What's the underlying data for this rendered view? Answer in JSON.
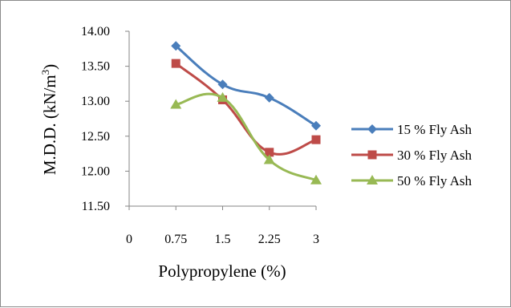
{
  "chart_data": {
    "type": "line",
    "title": "",
    "xlabel": "Polypropylene (%)",
    "ylabel_main": "M.D.D. (kN/m",
    "ylabel_sup": "3",
    "ylabel_end": ")",
    "x_tick_labels": [
      "0",
      "0.75",
      "1.5",
      "2.25",
      "3"
    ],
    "y_tick_labels": [
      "11.50",
      "12.00",
      "12.50",
      "13.00",
      "13.50",
      "14.00"
    ],
    "x": [
      0.75,
      1.5,
      2.25,
      3
    ],
    "ylim": [
      11.5,
      14.0
    ],
    "grid": false,
    "legend_position": "right",
    "series": [
      {
        "name": "15 % Fly Ash",
        "values": [
          13.79,
          13.24,
          13.05,
          12.65
        ],
        "color": "#4a7ebb",
        "marker": "diamond"
      },
      {
        "name": "30 % Fly Ash",
        "values": [
          13.54,
          13.02,
          12.27,
          12.45
        ],
        "color": "#be4b48",
        "marker": "square"
      },
      {
        "name": "50 % Fly Ash",
        "values": [
          12.95,
          13.05,
          12.16,
          11.87
        ],
        "color": "#98b954",
        "marker": "triangle"
      }
    ]
  }
}
